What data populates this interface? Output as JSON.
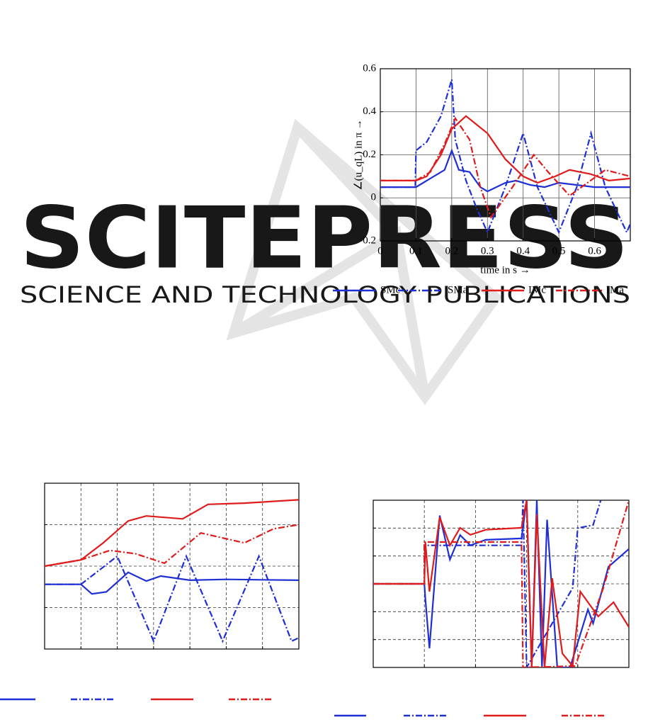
{
  "watermark": {
    "title": "SCITEPRESS",
    "subtitle": "SCIENCE AND TECHNOLOGY PUBLICATIONS"
  },
  "chart_data": [
    {
      "type": "line",
      "x_label": "time in s →",
      "y_label": "∠(u_qL) in π →",
      "xlim": [
        0,
        0.7
      ],
      "ylim": [
        -0.2,
        0.6
      ],
      "xticks": [
        0,
        0.1,
        0.2,
        0.3,
        0.4,
        0.5,
        0.6
      ],
      "yticks": [
        -0.2,
        0,
        0.2,
        0.4,
        0.6
      ],
      "grid": true,
      "grid_style": "solid",
      "tick_labels": true,
      "series": [
        {
          "name": "SMc",
          "color": "#1f2fd6",
          "dash": "solid",
          "x": [
            0,
            0.1,
            0.13,
            0.18,
            0.2,
            0.22,
            0.25,
            0.28,
            0.3,
            0.35,
            0.38,
            0.42,
            0.46,
            0.5,
            0.6,
            0.7
          ],
          "values": [
            0.05,
            0.05,
            0.08,
            0.13,
            0.22,
            0.13,
            0.12,
            0.05,
            0.03,
            0.07,
            0.08,
            0.06,
            0.05,
            0.07,
            0.05,
            0.05
          ]
        },
        {
          "name": "SMa",
          "color": "#1f2fd6",
          "dash": "dashdot",
          "x": [
            0,
            0.098,
            0.1,
            0.13,
            0.17,
            0.2,
            0.21,
            0.24,
            0.27,
            0.3,
            0.35,
            0.4,
            0.44,
            0.5,
            0.55,
            0.59,
            0.63,
            0.69,
            0.7
          ],
          "values": [
            0.05,
            0.05,
            0.22,
            0.26,
            0.38,
            0.55,
            0.27,
            0.08,
            -0.05,
            -0.16,
            0.05,
            0.3,
            0.05,
            -0.16,
            0.05,
            0.3,
            0.05,
            -0.16,
            -0.12
          ]
        },
        {
          "name": "IMc",
          "color": "#e01b1b",
          "dash": "solid",
          "x": [
            0,
            0.1,
            0.13,
            0.17,
            0.2,
            0.24,
            0.3,
            0.35,
            0.4,
            0.44,
            0.49,
            0.53,
            0.59,
            0.64,
            0.7
          ],
          "values": [
            0.08,
            0.08,
            0.1,
            0.2,
            0.32,
            0.38,
            0.3,
            0.18,
            0.1,
            0.07,
            0.1,
            0.13,
            0.11,
            0.08,
            0.09
          ]
        },
        {
          "name": "IMa",
          "color": "#e01b1b",
          "dash": "dashdot",
          "x": [
            0,
            0.1,
            0.14,
            0.18,
            0.21,
            0.25,
            0.28,
            0.31,
            0.37,
            0.43,
            0.47,
            0.53,
            0.58,
            0.63,
            0.7
          ],
          "values": [
            0.08,
            0.08,
            0.12,
            0.25,
            0.37,
            0.27,
            0.05,
            -0.09,
            0.05,
            0.2,
            0.12,
            0.01,
            0.07,
            0.13,
            0.1
          ]
        }
      ]
    },
    {
      "type": "line",
      "xlim": [
        0,
        0.7
      ],
      "ylim": [
        0,
        4
      ],
      "xticks": [
        0.1,
        0.2,
        0.3,
        0.4,
        0.5,
        0.6
      ],
      "yticks": [
        1,
        2,
        3
      ],
      "grid": true,
      "grid_style": "dashed",
      "tick_labels": false,
      "series": [
        {
          "color": "#1f2fd6",
          "dash": "solid",
          "x": [
            0,
            0.1,
            0.13,
            0.17,
            0.23,
            0.28,
            0.32,
            0.4,
            0.5,
            0.6,
            0.7
          ],
          "values": [
            1.56,
            1.56,
            1.33,
            1.38,
            1.85,
            1.64,
            1.76,
            1.66,
            1.68,
            1.67,
            1.66
          ]
        },
        {
          "color": "#1f2fd6",
          "dash": "dashdot",
          "x": [
            0,
            0.1,
            0.2,
            0.3,
            0.39,
            0.49,
            0.59,
            0.68,
            0.7
          ],
          "values": [
            1.56,
            1.56,
            2.24,
            0.19,
            2.24,
            0.19,
            2.24,
            0.19,
            0.27
          ]
        },
        {
          "color": "#e01b1b",
          "dash": "solid",
          "x": [
            0,
            0.1,
            0.16,
            0.23,
            0.28,
            0.38,
            0.45,
            0.55,
            0.7
          ],
          "values": [
            2.0,
            2.15,
            2.55,
            3.09,
            3.21,
            3.14,
            3.49,
            3.52,
            3.6
          ]
        },
        {
          "color": "#e01b1b",
          "dash": "dashdot",
          "x": [
            0,
            0.1,
            0.18,
            0.25,
            0.33,
            0.43,
            0.55,
            0.63,
            0.7
          ],
          "values": [
            2.0,
            2.15,
            2.38,
            2.3,
            2.07,
            2.8,
            2.56,
            2.9,
            3.0
          ]
        }
      ]
    },
    {
      "type": "line",
      "xlim": [
        0,
        5
      ],
      "ylim": [
        0,
        6
      ],
      "xticks": [
        1,
        2,
        3,
        4
      ],
      "yticks": [
        1,
        2,
        3,
        4,
        5
      ],
      "grid": true,
      "grid_style": "dashed",
      "tick_labels": false,
      "series": [
        {
          "color": "#1f2fd6",
          "dash": "solid",
          "x": [
            0,
            1.0,
            1.02,
            1.1,
            1.3,
            1.5,
            1.7,
            1.9,
            2.2,
            2.9,
            3.0,
            3.1,
            3.2,
            3.3,
            3.4,
            3.6,
            3.85,
            4.2,
            4.3,
            4.6,
            5.0
          ],
          "values": [
            3.0,
            3.0,
            2.47,
            0.69,
            5.45,
            3.87,
            4.75,
            4.38,
            4.58,
            4.63,
            6.0,
            0,
            6.0,
            0,
            5.3,
            0,
            0,
            2.08,
            1.58,
            3.61,
            4.25
          ]
        },
        {
          "color": "#1f2fd6",
          "dash": "dashdot",
          "x": [
            0,
            1.0,
            1.0,
            2.9,
            2.93,
            3.0,
            3.9,
            4.0,
            4.3,
            4.45
          ],
          "values": [
            3.0,
            3.0,
            4.38,
            4.38,
            6.0,
            0,
            2.85,
            5.0,
            5.11,
            6.0
          ]
        },
        {
          "color": "#e01b1b",
          "dash": "solid",
          "x": [
            0,
            1.0,
            1.02,
            1.1,
            1.3,
            1.5,
            1.7,
            1.9,
            2.2,
            2.9,
            3.0,
            3.1,
            3.2,
            3.35,
            3.5,
            3.7,
            3.9,
            4.05,
            4.4,
            4.7,
            5.0
          ],
          "values": [
            3.0,
            3.0,
            4.5,
            2.72,
            5.39,
            4.38,
            5.01,
            4.76,
            4.94,
            5.01,
            6.0,
            0,
            5.5,
            0,
            3.2,
            0.5,
            0.05,
            2.72,
            1.83,
            2.34,
            1.45
          ]
        },
        {
          "color": "#e01b1b",
          "dash": "dashdot",
          "x": [
            0,
            1.0,
            1.0,
            2.9,
            2.93,
            3.95,
            4.5,
            5.0
          ],
          "values": [
            3.0,
            3.0,
            4.5,
            4.5,
            0,
            0.05,
            2.85,
            6.0
          ]
        }
      ]
    }
  ]
}
